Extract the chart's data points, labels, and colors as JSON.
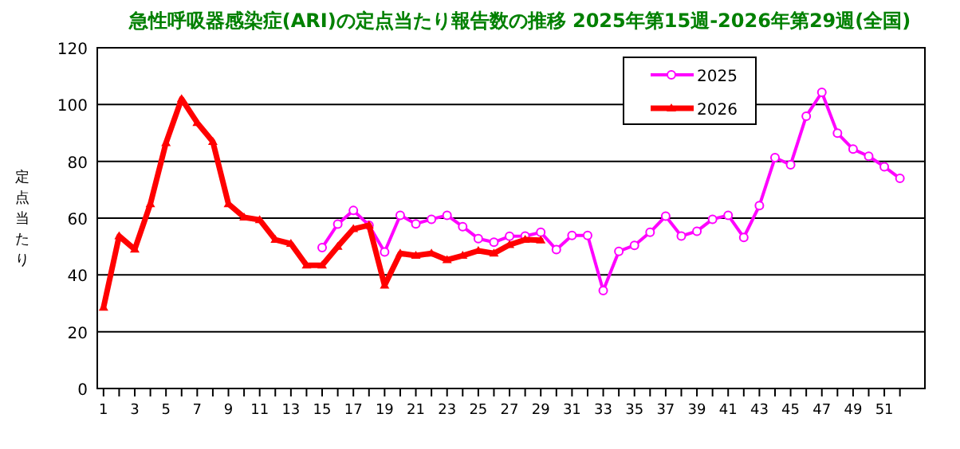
{
  "chart_data": {
    "type": "line",
    "title": "急性呼吸器感染症(ARI)の定点当たり報告数の推移 2025年第15週-2026年第29週(全国)",
    "ylabel": "定点当たり",
    "x": [
      1,
      2,
      3,
      4,
      5,
      6,
      7,
      8,
      9,
      10,
      11,
      12,
      13,
      14,
      15,
      16,
      17,
      18,
      19,
      20,
      21,
      22,
      23,
      24,
      25,
      26,
      27,
      28,
      29,
      30,
      31,
      32,
      33,
      34,
      35,
      36,
      37,
      38,
      39,
      40,
      41,
      42,
      43,
      44,
      45,
      46,
      47,
      48,
      49,
      50,
      51,
      52
    ],
    "series": [
      {
        "name": "2025",
        "color": "#ff00ff",
        "marker": "circle",
        "values": [
          null,
          null,
          null,
          null,
          null,
          null,
          null,
          null,
          null,
          null,
          null,
          null,
          null,
          null,
          49.6,
          57.9,
          62.7,
          57.5,
          48.1,
          61,
          58,
          59.6,
          61,
          57,
          52.8,
          51.5,
          53.6,
          53.7,
          55,
          48.9,
          53.9,
          53.9,
          34.5,
          48.3,
          50.4,
          55,
          60.7,
          53.7,
          55.4,
          59.6,
          61,
          53.2,
          64.4,
          81.3,
          78.8,
          95.9,
          104.3,
          89.9,
          84.3,
          81.8,
          78.1,
          74
        ]
      },
      {
        "name": "2026",
        "color": "#ff0000",
        "marker": "triangle",
        "values": [
          28.5,
          53.7,
          49,
          65,
          86.5,
          102,
          93.6,
          86.9,
          65,
          60.3,
          59.4,
          52.4,
          51,
          43.4,
          43.4,
          50,
          56.2,
          57.5,
          36.3,
          47.6,
          46.8,
          47.6,
          45.3,
          46.8,
          48.5,
          47.6,
          50.6,
          52.4,
          52.2,
          null,
          null,
          null,
          null,
          null,
          null,
          null,
          null,
          null,
          null,
          null,
          null,
          null,
          null,
          null,
          null,
          null,
          null,
          null,
          null,
          null,
          null,
          null
        ]
      }
    ],
    "xlim": [
      0.6,
      53.6
    ],
    "xticks": [
      1,
      {
        "value": 2,
        "label": null
      },
      3,
      {
        "value": 4,
        "label": null
      },
      5,
      {
        "value": 6,
        "label": null
      },
      7,
      {
        "value": 8,
        "label": null
      },
      9,
      {
        "value": 10,
        "label": null
      },
      11,
      {
        "value": 12,
        "label": null
      },
      13,
      {
        "value": 14,
        "label": null
      },
      15,
      {
        "value": 16,
        "label": null
      },
      17,
      {
        "value": 18,
        "label": null
      },
      19,
      {
        "value": 20,
        "label": null
      },
      21,
      {
        "value": 22,
        "label": null
      },
      23,
      {
        "value": 24,
        "label": null
      },
      25,
      {
        "value": 26,
        "label": null
      },
      27,
      {
        "value": 28,
        "label": null
      },
      29,
      {
        "value": 30,
        "label": null
      },
      31,
      {
        "value": 32,
        "label": null
      },
      33,
      {
        "value": 34,
        "label": null
      },
      35,
      {
        "value": 36,
        "label": null
      },
      37,
      {
        "value": 38,
        "label": null
      },
      39,
      {
        "value": 40,
        "label": null
      },
      41,
      {
        "value": 42,
        "label": null
      },
      43,
      {
        "value": 44,
        "label": null
      },
      45,
      {
        "value": 46,
        "label": null
      },
      47,
      {
        "value": 48,
        "label": null
      },
      49,
      {
        "value": 50,
        "label": null
      },
      51,
      {
        "value": 52,
        "label": null
      }
    ],
    "ylim": [
      0,
      120
    ],
    "yticks": [
      0,
      20,
      40,
      60,
      80,
      100,
      120
    ],
    "grid": "y",
    "legend": "top right"
  }
}
